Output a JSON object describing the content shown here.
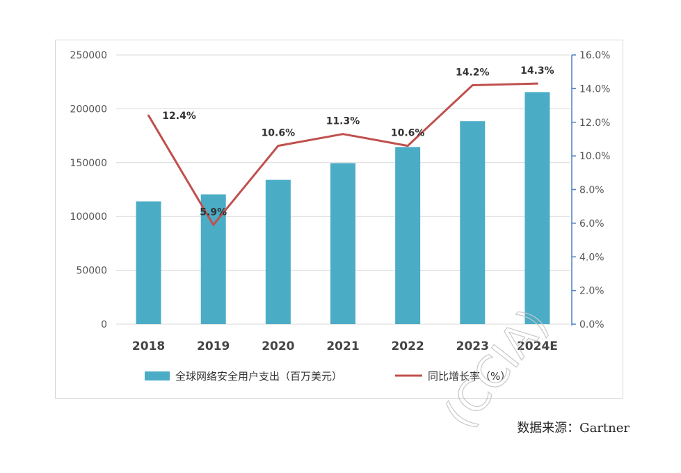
{
  "chart_data": {
    "type": "bar",
    "categories": [
      "2018",
      "2019",
      "2020",
      "2021",
      "2022",
      "2023",
      "2024E"
    ],
    "series": [
      {
        "name": "全球网络安全用户支出（百万美元）",
        "type": "bar",
        "axis": "left",
        "values": [
          114000,
          120500,
          134000,
          149500,
          164500,
          188500,
          215500
        ]
      },
      {
        "name": "同比增长率（%）",
        "type": "line",
        "axis": "right",
        "values": [
          12.4,
          5.9,
          10.6,
          11.3,
          10.6,
          14.2,
          14.3
        ],
        "labels": [
          "12.4%",
          "5.9%",
          "10.6%",
          "11.3%",
          "10.6%",
          "14.2%",
          "14.3%"
        ]
      }
    ],
    "y_left": {
      "min": 0,
      "max": 250000,
      "ticks": [
        "0",
        "50000",
        "100000",
        "150000",
        "200000",
        "250000"
      ]
    },
    "y_right": {
      "min": 0,
      "max": 16,
      "ticks": [
        "0.0%",
        "2.0%",
        "4.0%",
        "6.0%",
        "8.0%",
        "10.0%",
        "12.0%",
        "14.0%",
        "16.0%"
      ]
    },
    "grid": true,
    "legend_position": "bottom"
  },
  "colors": {
    "bar": "#4bacc6",
    "line": "#c0504d",
    "grid": "#d9d9d9",
    "axis_right": "#4f81bd"
  },
  "source": "数据来源：Gartner",
  "watermark": "(CCIA)"
}
